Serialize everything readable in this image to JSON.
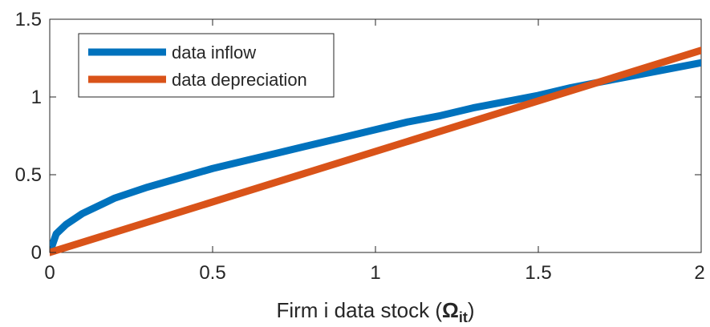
{
  "chart_data": {
    "type": "line",
    "title": "",
    "xlabel": "Firm i data stock (",
    "xlabel_symbol": "Ω",
    "xlabel_subscript": "it",
    "xlabel_suffix": ")",
    "ylabel": "",
    "xlim": [
      0,
      2
    ],
    "ylim": [
      0,
      1.5
    ],
    "xticks": [
      0,
      0.5,
      1,
      1.5,
      2
    ],
    "xtick_labels": [
      "0",
      "0.5",
      "1",
      "1.5",
      "2"
    ],
    "yticks": [
      0,
      0.5,
      1,
      1.5
    ],
    "ytick_labels": [
      "0",
      "0.5",
      "1",
      "1.5"
    ],
    "grid": false,
    "legend_position": "top-left",
    "series": [
      {
        "name": "data inflow",
        "color": "#0072BD",
        "x": [
          0,
          0.02,
          0.05,
          0.1,
          0.2,
          0.3,
          0.4,
          0.5,
          0.6,
          0.7,
          0.8,
          0.9,
          1.0,
          1.1,
          1.2,
          1.3,
          1.4,
          1.5,
          1.6,
          1.7,
          1.8,
          1.9,
          2.0
        ],
        "values": [
          0,
          0.12,
          0.18,
          0.25,
          0.35,
          0.42,
          0.48,
          0.54,
          0.59,
          0.64,
          0.69,
          0.74,
          0.79,
          0.84,
          0.88,
          0.93,
          0.97,
          1.01,
          1.06,
          1.1,
          1.14,
          1.18,
          1.22
        ]
      },
      {
        "name": "data depreciation",
        "color": "#D95319",
        "x": [
          0,
          2
        ],
        "values": [
          0,
          1.3
        ]
      }
    ]
  }
}
